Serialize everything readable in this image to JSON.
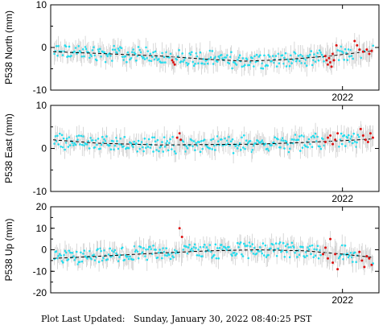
{
  "footer": {
    "label": "Plot Last Updated:",
    "date": "Sunday, January 30, 2022 08:40:25 PST"
  },
  "colors": {
    "point": "#22ddee",
    "recent": "#dd1111",
    "errorbar": "#c8c8c8",
    "trend": "#000000"
  },
  "chart_data": [
    {
      "type": "scatter",
      "ylabel": "P538 North (mm)",
      "ylim": [
        -10,
        10
      ],
      "yticks": [
        -10,
        0,
        10
      ],
      "xlabel_tick": "2022",
      "xlim": [
        2019.6,
        2022.3
      ],
      "error_bars": true,
      "trend_line": {
        "style": "dashed",
        "x": [
          2019.62,
          2020.0,
          2020.5,
          2020.9,
          2021.2,
          2021.5,
          2021.9,
          2022.25
        ],
        "y": [
          -1.0,
          -1.4,
          -2.0,
          -2.8,
          -3.2,
          -2.9,
          -2.0,
          -0.8
        ]
      },
      "series": [
        {
          "role": "recent",
          "x": [
            2020.6,
            2020.61,
            2020.62,
            2021.86,
            2021.87,
            2021.88,
            2021.89,
            2021.9,
            2021.91,
            2021.92,
            2021.93,
            2021.95,
            2022.1,
            2022.12,
            2022.14,
            2022.17,
            2022.2,
            2022.22,
            2022.24
          ],
          "y": [
            -3.0,
            -3.5,
            -4.0,
            -2.0,
            -3.0,
            -4.0,
            -2.5,
            -3.5,
            -4.5,
            -1.5,
            -3.0,
            0.5,
            1.5,
            0.5,
            -0.5,
            -1.0,
            -0.5,
            -1.5,
            -0.8
          ]
        }
      ]
    },
    {
      "type": "scatter",
      "ylabel": "P538 East (mm)",
      "ylim": [
        -10,
        10
      ],
      "yticks": [
        -10,
        0,
        10
      ],
      "xlabel_tick": "2022",
      "xlim": [
        2019.6,
        2022.3
      ],
      "error_bars": true,
      "trend_line": {
        "style": "dashed",
        "x": [
          2019.62,
          2020.0,
          2020.5,
          2020.9,
          2021.3,
          2021.7,
          2022.0,
          2022.25
        ],
        "y": [
          2.0,
          1.2,
          0.8,
          0.9,
          1.0,
          1.4,
          1.8,
          2.2
        ]
      },
      "series": [
        {
          "role": "recent",
          "x": [
            2020.64,
            2020.66,
            2020.67,
            2021.86,
            2021.88,
            2021.9,
            2021.92,
            2021.94,
            2021.96,
            2022.15,
            2022.17,
            2022.19,
            2022.21,
            2022.23,
            2022.25
          ],
          "y": [
            2.5,
            3.5,
            2.0,
            1.5,
            2.5,
            3.0,
            1.0,
            2.0,
            3.5,
            4.5,
            3.0,
            2.0,
            1.5,
            3.5,
            2.5
          ]
        }
      ]
    },
    {
      "type": "scatter",
      "ylabel": "P538 Up (mm)",
      "ylim": [
        -20,
        20
      ],
      "yticks": [
        -20,
        -10,
        0,
        10,
        20
      ],
      "xlabel_tick": "2022",
      "xlim": [
        2019.6,
        2022.3
      ],
      "error_bars": true,
      "trend_line": {
        "style": "dashed",
        "x": [
          2019.62,
          2020.0,
          2020.5,
          2020.9,
          2021.3,
          2021.7,
          2022.0,
          2022.25
        ],
        "y": [
          -4.0,
          -3.0,
          -1.5,
          -0.5,
          0.0,
          -0.5,
          -2.0,
          -3.5
        ]
      },
      "series": [
        {
          "role": "recent",
          "x": [
            2020.66,
            2020.68,
            2021.84,
            2021.86,
            2021.88,
            2021.9,
            2021.92,
            2021.94,
            2021.96,
            2022.14,
            2022.16,
            2022.18,
            2022.2,
            2022.22,
            2022.24
          ],
          "y": [
            10.0,
            6.0,
            -2.0,
            1.0,
            -4.0,
            5.0,
            -6.0,
            -2.0,
            -9.0,
            -1.0,
            -5.0,
            -8.0,
            -3.0,
            -4.0,
            -7.0
          ]
        }
      ]
    }
  ]
}
